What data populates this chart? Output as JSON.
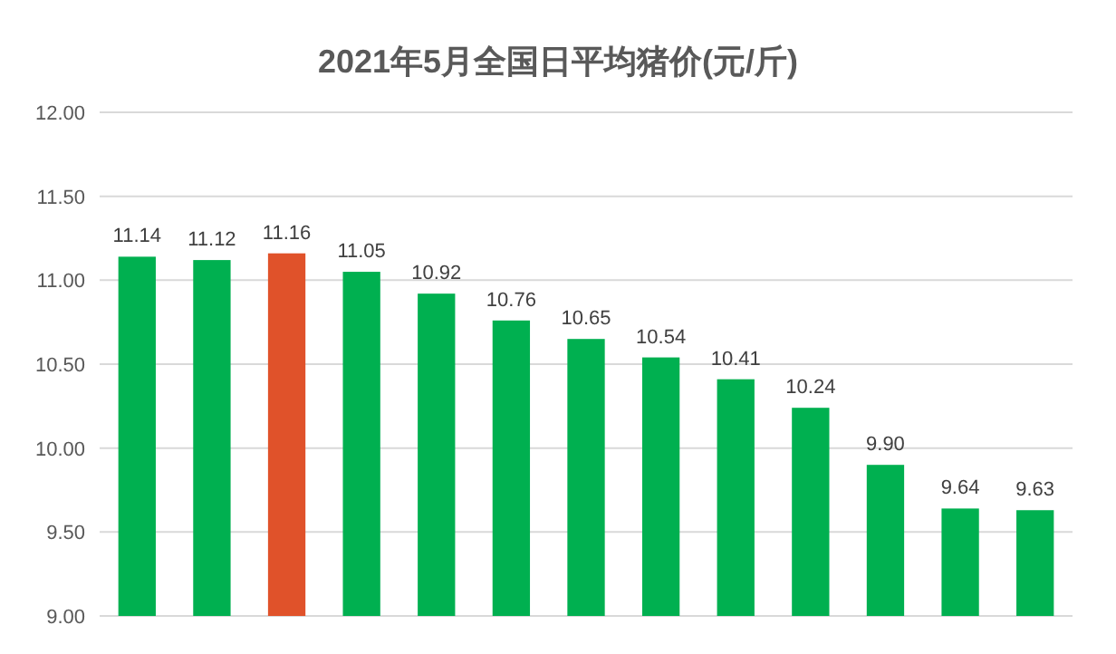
{
  "chart_data": {
    "type": "bar",
    "title": "2021年5月全国日平均猪价(元/斤)",
    "categories": [
      null,
      null,
      null,
      null,
      null,
      null,
      null,
      null,
      null,
      null,
      null,
      null,
      null
    ],
    "values": [
      11.14,
      11.12,
      11.16,
      11.05,
      10.92,
      10.76,
      10.65,
      10.54,
      10.41,
      10.24,
      9.9,
      9.64,
      9.63
    ],
    "value_labels": [
      "11.14",
      "11.12",
      "11.16",
      "11.05",
      "10.92",
      "10.76",
      "10.65",
      "10.54",
      "10.41",
      "10.24",
      "9.90",
      "9.64",
      "9.63"
    ],
    "colors": [
      "#00b050",
      "#00b050",
      "#e0522a",
      "#00b050",
      "#00b050",
      "#00b050",
      "#00b050",
      "#00b050",
      "#00b050",
      "#00b050",
      "#00b050",
      "#00b050",
      "#00b050"
    ],
    "ylim": [
      9,
      12
    ],
    "yticks": [
      {
        "value": 9,
        "label": "9.00"
      },
      {
        "value": 9.5,
        "label": "9.50"
      },
      {
        "value": 10,
        "label": "10.00"
      },
      {
        "value": 10.5,
        "label": "10.50"
      },
      {
        "value": 11,
        "label": "11.00"
      },
      {
        "value": 11.5,
        "label": "11.50"
      },
      {
        "value": 12,
        "label": "12.00"
      }
    ],
    "grid": "y"
  }
}
